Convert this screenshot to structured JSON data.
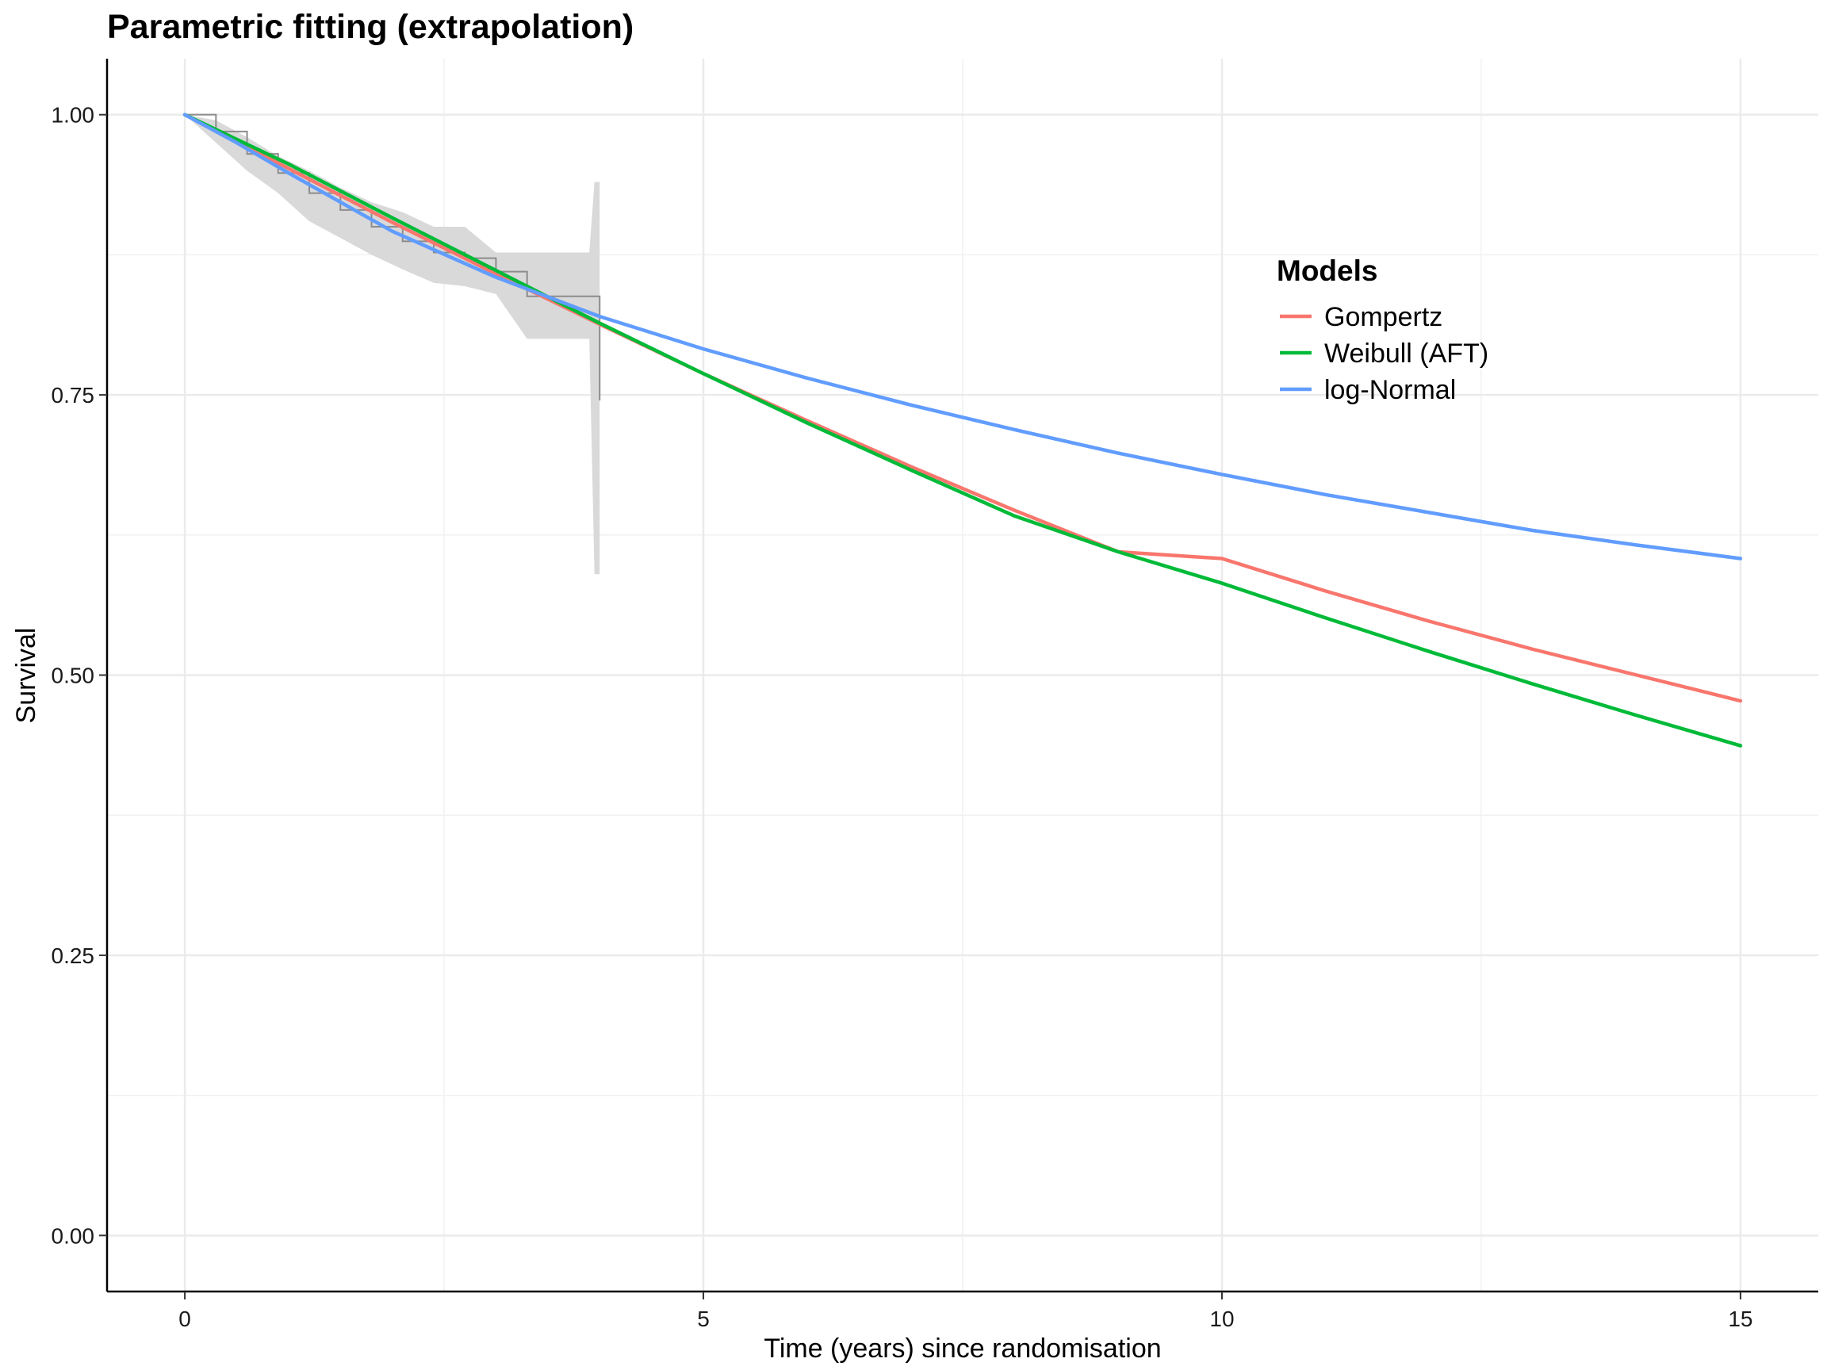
{
  "chart_data": {
    "type": "line",
    "title": "Parametric fitting (extrapolation)",
    "xlabel": "Time (years) since randomisation",
    "ylabel": "Survival",
    "xlim": [
      -0.75,
      15.75
    ],
    "ylim": [
      -0.05,
      1.05
    ],
    "x_ticks": [
      0,
      5,
      10,
      15
    ],
    "x_tick_labels": [
      "0",
      "5",
      "10",
      "15"
    ],
    "y_ticks": [
      0,
      0.25,
      0.5,
      0.75,
      1.0
    ],
    "y_tick_labels": [
      "0.00",
      "0.25",
      "0.50",
      "0.75",
      "1.00"
    ],
    "grid": true,
    "legend_title": "Models",
    "legend_position": "top-right",
    "series": [
      {
        "name": "Gompertz",
        "color": "#F8766D",
        "x": [
          0,
          1,
          2,
          3,
          4,
          5,
          6,
          7,
          8,
          9,
          10,
          11,
          12,
          13,
          14,
          15
        ],
        "y": [
          1.0,
          0.952,
          0.904,
          0.858,
          0.813,
          0.769,
          0.727,
          0.686,
          0.647,
          0.61,
          0.604,
          0.575,
          0.548,
          0.523,
          0.5,
          0.477
        ]
      },
      {
        "name": "Weibull (AFT)",
        "color": "#00BA38",
        "x": [
          0,
          1,
          2,
          3,
          4,
          5,
          6,
          7,
          8,
          9,
          10,
          11,
          12,
          13,
          14,
          15
        ],
        "y": [
          1.0,
          0.956,
          0.908,
          0.861,
          0.814,
          0.769,
          0.725,
          0.683,
          0.642,
          0.61,
          0.582,
          0.551,
          0.521,
          0.492,
          0.464,
          0.437
        ]
      },
      {
        "name": "log-Normal",
        "color": "#619CFF",
        "x": [
          0,
          0.5,
          1,
          2,
          3,
          4,
          5,
          6,
          7,
          8,
          9,
          10,
          11,
          12,
          13,
          14,
          15
        ],
        "y": [
          1.0,
          0.975,
          0.948,
          0.896,
          0.855,
          0.82,
          0.791,
          0.765,
          0.741,
          0.719,
          0.698,
          0.679,
          0.661,
          0.645,
          0.629,
          0.616,
          0.604
        ]
      }
    ],
    "kaplan_meier": {
      "color": "#8c8c8c",
      "x": [
        0,
        0.3,
        0.6,
        0.9,
        1.2,
        1.5,
        1.8,
        2.1,
        2.4,
        2.7,
        3.0,
        3.3,
        3.6,
        3.9,
        4.0
      ],
      "y": [
        1.0,
        0.985,
        0.965,
        0.948,
        0.93,
        0.915,
        0.9,
        0.887,
        0.877,
        0.872,
        0.86,
        0.838,
        0.838,
        0.838,
        0.745
      ]
    },
    "confidence_band": {
      "color": "#d9d9d9",
      "x": [
        0,
        0.3,
        0.6,
        0.9,
        1.2,
        1.5,
        1.8,
        2.1,
        2.4,
        2.7,
        3.0,
        3.3,
        3.6,
        3.9,
        3.95,
        4.0
      ],
      "upper": [
        1.0,
        0.995,
        0.98,
        0.963,
        0.95,
        0.935,
        0.922,
        0.913,
        0.9,
        0.9,
        0.877,
        0.877,
        0.877,
        0.877,
        0.94,
        0.94
      ],
      "lower": [
        1.0,
        0.975,
        0.95,
        0.93,
        0.905,
        0.89,
        0.875,
        0.862,
        0.85,
        0.847,
        0.84,
        0.8,
        0.8,
        0.8,
        0.59,
        0.59
      ]
    }
  }
}
